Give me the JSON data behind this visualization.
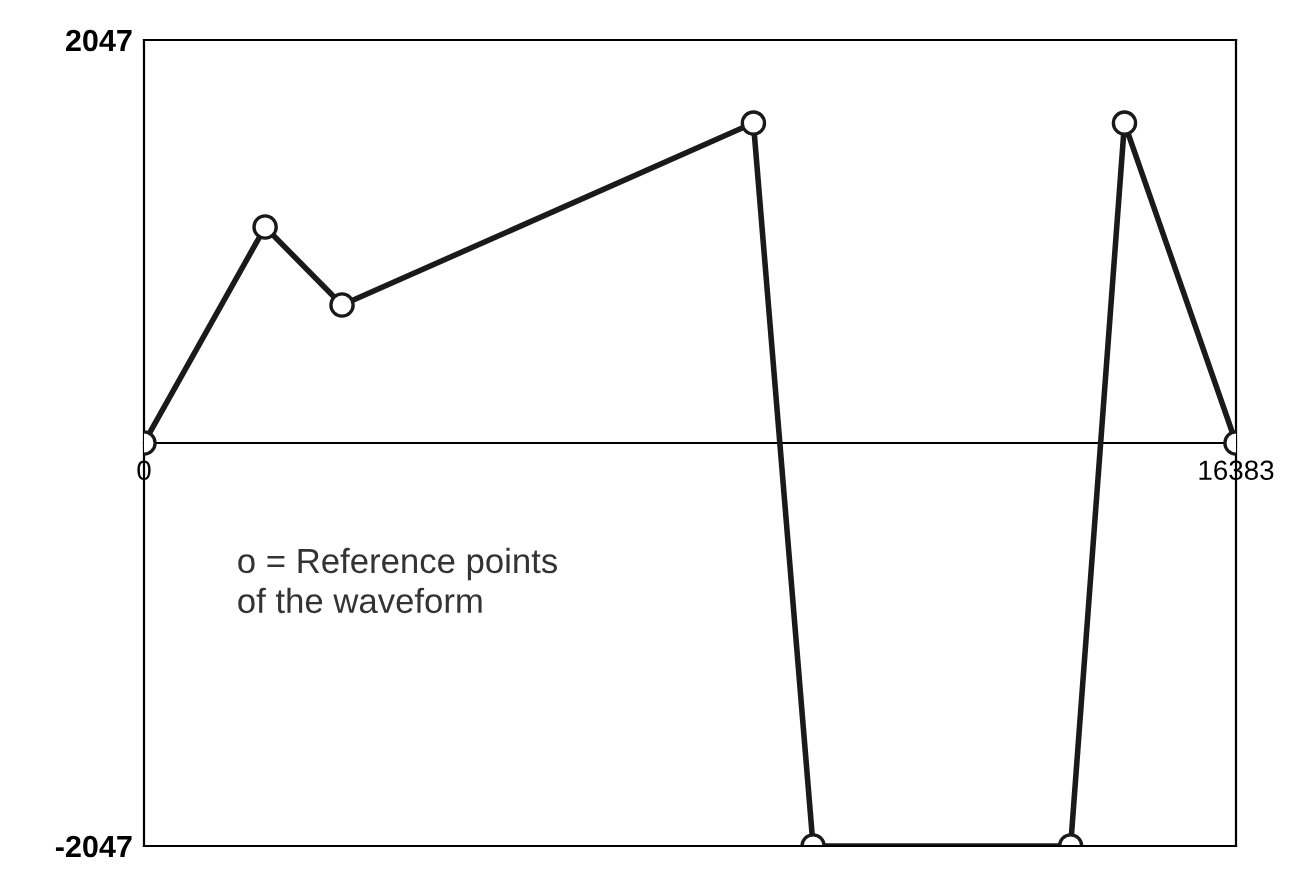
{
  "chart_data": {
    "type": "line",
    "x": [
      0,
      1817,
      2971,
      9143,
      10038,
      13902,
      14710,
      16383
    ],
    "series": [
      {
        "color": "#1a1a1a",
        "values": [
          0,
          1097,
          701,
          1625,
          -2047,
          -2047,
          1625,
          0
        ]
      }
    ],
    "xlim": [
      0,
      16383
    ],
    "xticks": [
      0,
      16383
    ],
    "ylim": [
      -2047,
      2047
    ],
    "yticks": [
      -2047,
      2047
    ],
    "marker": "circle",
    "line_style": "solid",
    "annotations": [
      "o = Reference points\nof the waveform"
    ]
  }
}
